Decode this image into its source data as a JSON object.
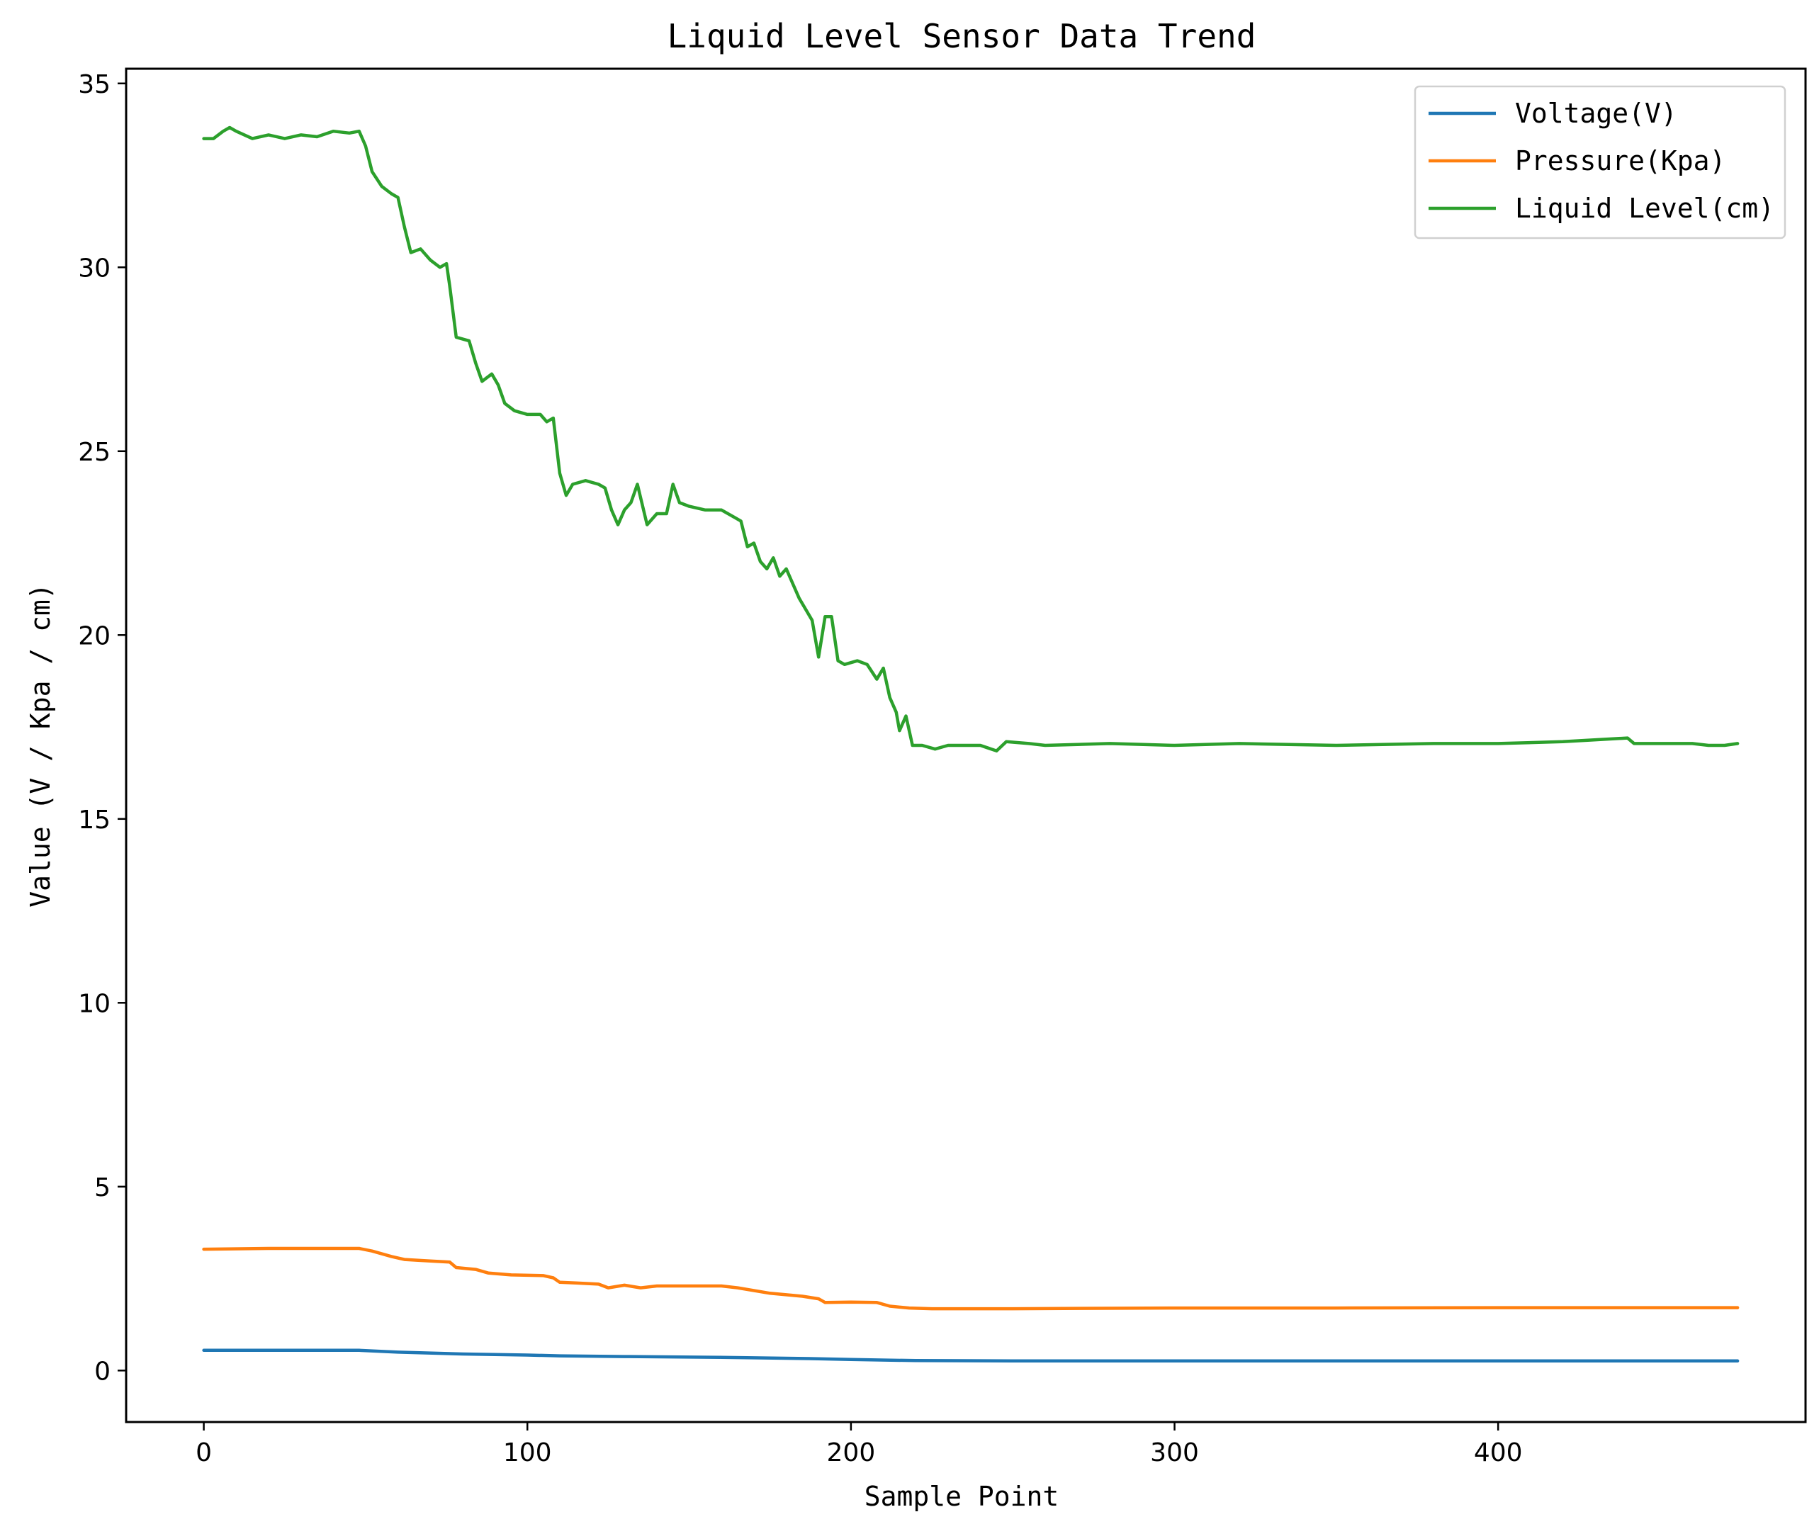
{
  "chart_data": {
    "type": "line",
    "title": "Liquid Level Sensor Data Trend",
    "xlabel": "Sample Point",
    "ylabel": "Value (V / Kpa / cm)",
    "xlim": [
      -24,
      495
    ],
    "ylim": [
      -1.4,
      35.4
    ],
    "xticks": [
      0,
      100,
      200,
      300,
      400
    ],
    "yticks": [
      0,
      5,
      10,
      15,
      20,
      25,
      30,
      35
    ],
    "grid": false,
    "legend": "top-right",
    "series": [
      {
        "name": "Voltage(V)",
        "color": "#1f77b4",
        "points": [
          [
            0,
            0.55
          ],
          [
            20,
            0.55
          ],
          [
            48,
            0.55
          ],
          [
            60,
            0.5
          ],
          [
            80,
            0.45
          ],
          [
            100,
            0.42
          ],
          [
            110,
            0.4
          ],
          [
            130,
            0.38
          ],
          [
            160,
            0.36
          ],
          [
            190,
            0.32
          ],
          [
            200,
            0.3
          ],
          [
            220,
            0.27
          ],
          [
            250,
            0.26
          ],
          [
            300,
            0.26
          ],
          [
            400,
            0.26
          ],
          [
            474,
            0.26
          ]
        ]
      },
      {
        "name": "Pressure(Kpa)",
        "color": "#ff7f0e",
        "points": [
          [
            0,
            3.3
          ],
          [
            20,
            3.32
          ],
          [
            48,
            3.32
          ],
          [
            52,
            3.25
          ],
          [
            58,
            3.1
          ],
          [
            62,
            3.02
          ],
          [
            70,
            2.98
          ],
          [
            76,
            2.95
          ],
          [
            78,
            2.8
          ],
          [
            84,
            2.75
          ],
          [
            88,
            2.65
          ],
          [
            95,
            2.6
          ],
          [
            105,
            2.58
          ],
          [
            108,
            2.52
          ],
          [
            110,
            2.4
          ],
          [
            115,
            2.38
          ],
          [
            122,
            2.35
          ],
          [
            125,
            2.25
          ],
          [
            130,
            2.32
          ],
          [
            135,
            2.25
          ],
          [
            140,
            2.3
          ],
          [
            160,
            2.3
          ],
          [
            165,
            2.25
          ],
          [
            175,
            2.1
          ],
          [
            185,
            2.02
          ],
          [
            190,
            1.95
          ],
          [
            192,
            1.85
          ],
          [
            200,
            1.86
          ],
          [
            208,
            1.85
          ],
          [
            212,
            1.75
          ],
          [
            218,
            1.7
          ],
          [
            225,
            1.68
          ],
          [
            250,
            1.68
          ],
          [
            300,
            1.7
          ],
          [
            350,
            1.7
          ],
          [
            400,
            1.71
          ],
          [
            474,
            1.71
          ]
        ]
      },
      {
        "name": "Liquid Level(cm)",
        "color": "#2ca02c",
        "points": [
          [
            0,
            33.5
          ],
          [
            3,
            33.5
          ],
          [
            6,
            33.7
          ],
          [
            8,
            33.8
          ],
          [
            10,
            33.7
          ],
          [
            15,
            33.5
          ],
          [
            20,
            33.6
          ],
          [
            25,
            33.5
          ],
          [
            30,
            33.6
          ],
          [
            35,
            33.55
          ],
          [
            40,
            33.7
          ],
          [
            45,
            33.65
          ],
          [
            48,
            33.7
          ],
          [
            50,
            33.3
          ],
          [
            52,
            32.6
          ],
          [
            55,
            32.2
          ],
          [
            58,
            32.0
          ],
          [
            60,
            31.9
          ],
          [
            62,
            31.1
          ],
          [
            64,
            30.4
          ],
          [
            67,
            30.5
          ],
          [
            70,
            30.2
          ],
          [
            73,
            30.0
          ],
          [
            75,
            30.1
          ],
          [
            76,
            29.5
          ],
          [
            78,
            28.1
          ],
          [
            82,
            28.0
          ],
          [
            84,
            27.4
          ],
          [
            86,
            26.9
          ],
          [
            89,
            27.1
          ],
          [
            91,
            26.8
          ],
          [
            93,
            26.3
          ],
          [
            96,
            26.1
          ],
          [
            100,
            26.0
          ],
          [
            104,
            26.0
          ],
          [
            106,
            25.8
          ],
          [
            108,
            25.9
          ],
          [
            110,
            24.4
          ],
          [
            112,
            23.8
          ],
          [
            114,
            24.1
          ],
          [
            118,
            24.2
          ],
          [
            122,
            24.1
          ],
          [
            124,
            24.0
          ],
          [
            126,
            23.4
          ],
          [
            128,
            23.0
          ],
          [
            130,
            23.4
          ],
          [
            132,
            23.6
          ],
          [
            134,
            24.1
          ],
          [
            137,
            23.0
          ],
          [
            140,
            23.3
          ],
          [
            143,
            23.3
          ],
          [
            145,
            24.1
          ],
          [
            147,
            23.6
          ],
          [
            150,
            23.5
          ],
          [
            155,
            23.4
          ],
          [
            160,
            23.4
          ],
          [
            164,
            23.2
          ],
          [
            166,
            23.1
          ],
          [
            168,
            22.4
          ],
          [
            170,
            22.5
          ],
          [
            172,
            22.0
          ],
          [
            174,
            21.8
          ],
          [
            176,
            22.1
          ],
          [
            178,
            21.6
          ],
          [
            180,
            21.8
          ],
          [
            182,
            21.4
          ],
          [
            184,
            21.0
          ],
          [
            186,
            20.7
          ],
          [
            188,
            20.4
          ],
          [
            190,
            19.4
          ],
          [
            192,
            20.5
          ],
          [
            194,
            20.5
          ],
          [
            196,
            19.3
          ],
          [
            198,
            19.2
          ],
          [
            202,
            19.3
          ],
          [
            205,
            19.2
          ],
          [
            208,
            18.8
          ],
          [
            210,
            19.1
          ],
          [
            212,
            18.3
          ],
          [
            214,
            17.9
          ],
          [
            215,
            17.4
          ],
          [
            217,
            17.8
          ],
          [
            219,
            17.0
          ],
          [
            222,
            17.0
          ],
          [
            226,
            16.9
          ],
          [
            230,
            17.0
          ],
          [
            240,
            17.0
          ],
          [
            245,
            16.85
          ],
          [
            248,
            17.1
          ],
          [
            255,
            17.05
          ],
          [
            260,
            17.0
          ],
          [
            280,
            17.05
          ],
          [
            300,
            17.0
          ],
          [
            320,
            17.05
          ],
          [
            350,
            17.0
          ],
          [
            380,
            17.05
          ],
          [
            400,
            17.05
          ],
          [
            420,
            17.1
          ],
          [
            440,
            17.2
          ],
          [
            442,
            17.05
          ],
          [
            450,
            17.05
          ],
          [
            460,
            17.05
          ],
          [
            465,
            17.0
          ],
          [
            470,
            17.0
          ],
          [
            474,
            17.05
          ]
        ]
      }
    ]
  }
}
